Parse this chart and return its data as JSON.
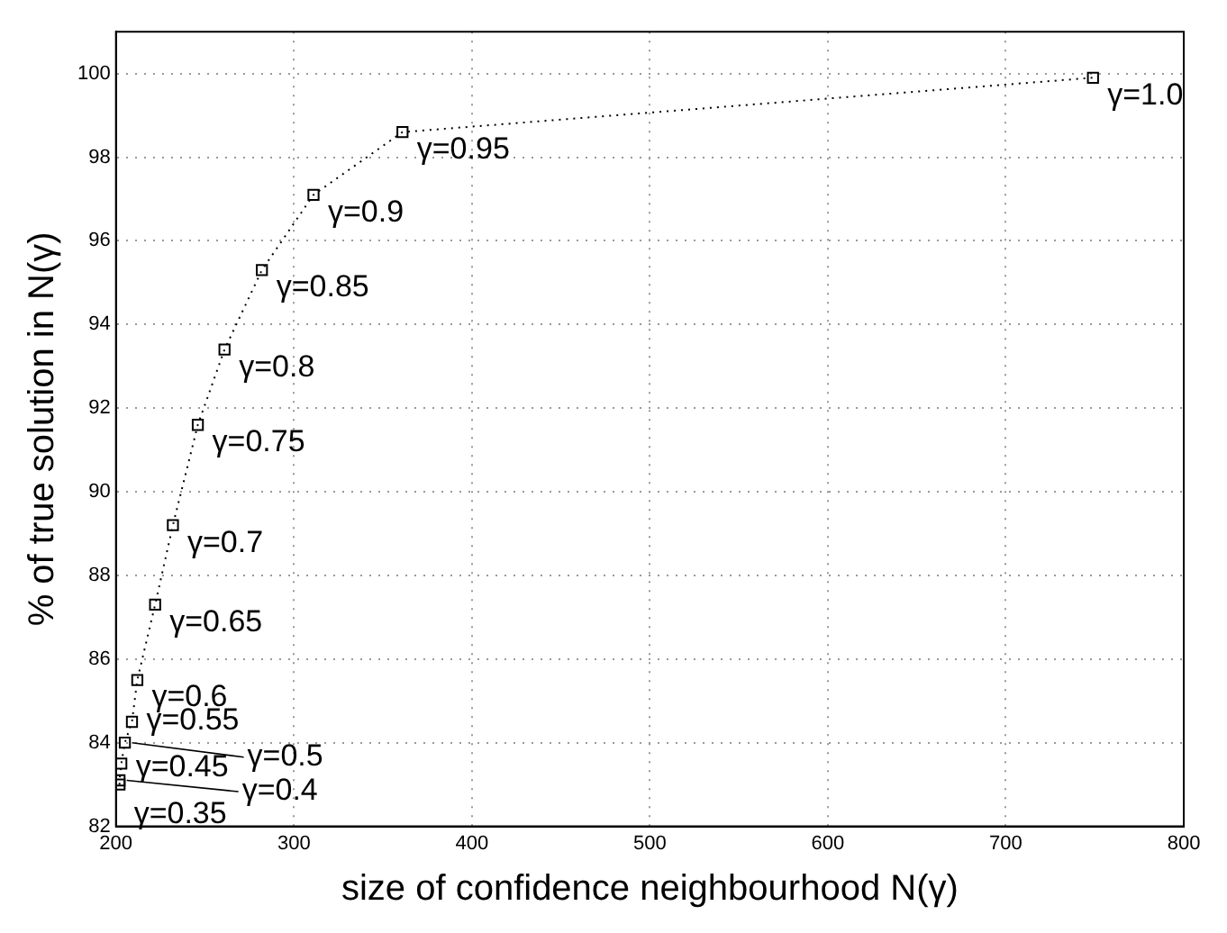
{
  "chart_data": {
    "type": "line",
    "xlabel": "size of confidence neighbourhood N(γ)",
    "ylabel": "% of true solution in N(γ)",
    "x": [
      202,
      202,
      203,
      205,
      209,
      212,
      222,
      232,
      246,
      261,
      282,
      311,
      361,
      749
    ],
    "series": [
      {
        "color": "#000000",
        "values": [
          83.0,
          83.1,
          83.5,
          84.0,
          84.5,
          85.5,
          87.3,
          89.2,
          91.6,
          93.4,
          95.3,
          97.1,
          98.6,
          99.9
        ]
      }
    ],
    "xlim": [
      200,
      800
    ],
    "xticks": [
      200,
      300,
      400,
      500,
      600,
      700,
      800
    ],
    "ylim": [
      82,
      101
    ],
    "yticks": [
      82,
      84,
      86,
      88,
      90,
      92,
      94,
      96,
      98,
      100
    ],
    "grid": true,
    "marker": "square",
    "line_style": "dotted",
    "legend": false,
    "annotations": [
      {
        "text": "γ=0.35",
        "x": 202,
        "y": 83.0
      },
      {
        "text": "γ=0.4",
        "x": 202,
        "y": 83.1
      },
      {
        "text": "γ=0.45",
        "x": 203,
        "y": 83.5
      },
      {
        "text": "γ=0.5",
        "x": 205,
        "y": 84.0
      },
      {
        "text": "γ=0.55",
        "x": 209,
        "y": 84.5
      },
      {
        "text": "γ=0.6",
        "x": 212,
        "y": 85.5
      },
      {
        "text": "γ=0.65",
        "x": 222,
        "y": 87.3
      },
      {
        "text": "γ=0.7",
        "x": 232,
        "y": 89.2
      },
      {
        "text": "γ=0.75",
        "x": 246,
        "y": 91.6
      },
      {
        "text": "γ=0.8",
        "x": 261,
        "y": 93.4
      },
      {
        "text": "γ=0.85",
        "x": 282,
        "y": 95.3
      },
      {
        "text": "γ=0.9",
        "x": 311,
        "y": 97.1
      },
      {
        "text": "γ=0.95",
        "x": 361,
        "y": 98.6
      },
      {
        "text": "γ=1.0",
        "x": 749,
        "y": 99.9
      }
    ]
  }
}
